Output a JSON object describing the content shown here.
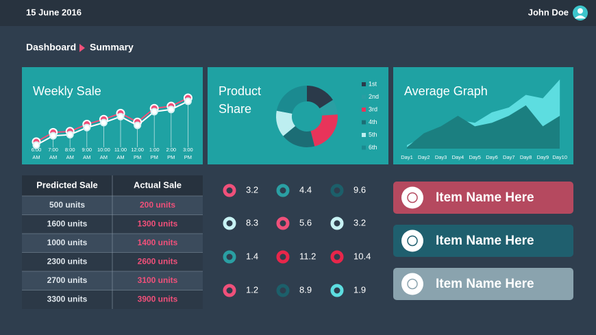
{
  "header": {
    "date": "15 June 2016",
    "user": "John Doe"
  },
  "breadcrumb": [
    "Dashboard",
    "Summary"
  ],
  "chart_data": [
    {
      "type": "line",
      "title": "Weekly Sale",
      "categories": [
        "6:00 AM",
        "7:00 AM",
        "8:00 AM",
        "9:00 AM",
        "10:00 AM",
        "11:00 AM",
        "12:00 PM",
        "1:00 PM",
        "2:00 PM",
        "3:00 PM"
      ],
      "series": [
        {
          "color": "#f0507a",
          "values": [
            10,
            27,
            29,
            42,
            51,
            62,
            46,
            71,
            75,
            90
          ]
        },
        {
          "color": "#ffffff",
          "values": [
            4,
            21,
            23,
            36,
            45,
            56,
            40,
            65,
            69,
            84
          ]
        }
      ],
      "ylim": [
        0,
        100
      ]
    },
    {
      "type": "pie",
      "title": "Product Share",
      "categories": [
        "1st",
        "2nd",
        "3rd",
        "4th",
        "5th",
        "6th"
      ],
      "values": [
        16,
        8,
        22,
        18,
        14,
        22
      ],
      "colors": [
        "#2b3a4a",
        "#2a9fa3",
        "#e8345a",
        "#1c6d75",
        "#bdeef0",
        "#1b8a90"
      ]
    },
    {
      "type": "area",
      "title": "Average Graph",
      "categories": [
        "Day1",
        "Day2",
        "Day3",
        "Day4",
        "Day5",
        "Day6",
        "Day7",
        "Day8",
        "Day9",
        "Day10"
      ],
      "series": [
        {
          "color": "#5ddde0",
          "values": [
            5,
            17,
            29,
            41,
            37,
            52,
            59,
            77,
            72,
            99
          ]
        },
        {
          "color": "#1b7f80",
          "values": [
            2,
            22,
            32,
            47,
            32,
            37,
            47,
            62,
            32,
            47
          ]
        }
      ],
      "ylim": [
        0,
        100
      ]
    }
  ],
  "table": {
    "columns": [
      "Predicted Sale",
      "Actual Sale"
    ],
    "rows": [
      [
        "500 units",
        "200 units"
      ],
      [
        "1600 units",
        "1300 units"
      ],
      [
        "1000 units",
        "1400 units"
      ],
      [
        "2300 units",
        "2600 units"
      ],
      [
        "2700 units",
        "3100 units"
      ],
      [
        "3300 units",
        "3900 units"
      ]
    ]
  },
  "stats": [
    {
      "value": 3.2,
      "color": "#f0507a"
    },
    {
      "value": 4.4,
      "color": "#2a9fa3"
    },
    {
      "value": 9.6,
      "color": "#1c5f6a"
    },
    {
      "value": 8.3,
      "color": "#c8f2f4"
    },
    {
      "value": 5.6,
      "color": "#f0507a"
    },
    {
      "value": 3.2,
      "color": "#c8f2f4"
    },
    {
      "value": 1.4,
      "color": "#2a9fa3"
    },
    {
      "value": 11.2,
      "color": "#e8264a"
    },
    {
      "value": 10.4,
      "color": "#e8264a"
    },
    {
      "value": 1.2,
      "color": "#f0507a"
    },
    {
      "value": 8.9,
      "color": "#1c5f6a"
    },
    {
      "value": 1.9,
      "color": "#5ddde0"
    }
  ],
  "buttons": [
    {
      "label": "Item Name Here",
      "color": "#b5495f"
    },
    {
      "label": "Item Name Here",
      "color": "#1f5f6e"
    },
    {
      "label": "Item Name Here",
      "color": "#8aa3ae"
    }
  ]
}
